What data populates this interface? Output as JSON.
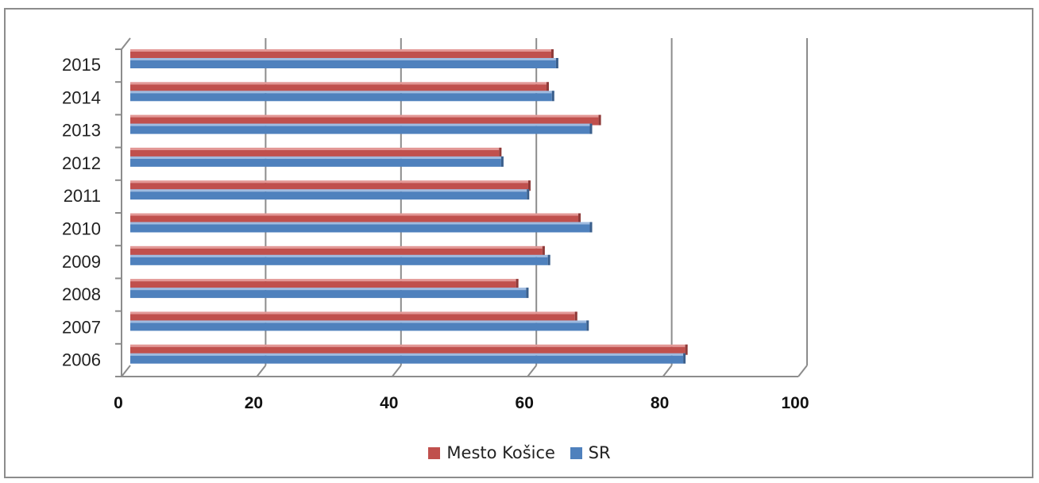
{
  "chart_data": {
    "type": "bar",
    "orientation": "horizontal",
    "categories": [
      "2006",
      "2007",
      "2008",
      "2009",
      "2010",
      "2011",
      "2012",
      "2013",
      "2014",
      "2015"
    ],
    "series": [
      {
        "name": "Mesto Košice",
        "color": "#c0504d",
        "values": [
          82.0,
          65.7,
          57.0,
          60.9,
          66.2,
          58.8,
          54.5,
          69.2,
          61.5,
          62.2
        ]
      },
      {
        "name": "SR",
        "color": "#4f81bd",
        "values": [
          81.7,
          67.4,
          58.5,
          61.7,
          67.9,
          58.6,
          54.8,
          67.9,
          62.3,
          62.9
        ]
      }
    ],
    "xlim": [
      0,
      100
    ],
    "xticks": [
      "0",
      "20",
      "40",
      "60",
      "80",
      "100"
    ],
    "grid": true,
    "legend_position": "bottom",
    "style": "3d"
  }
}
